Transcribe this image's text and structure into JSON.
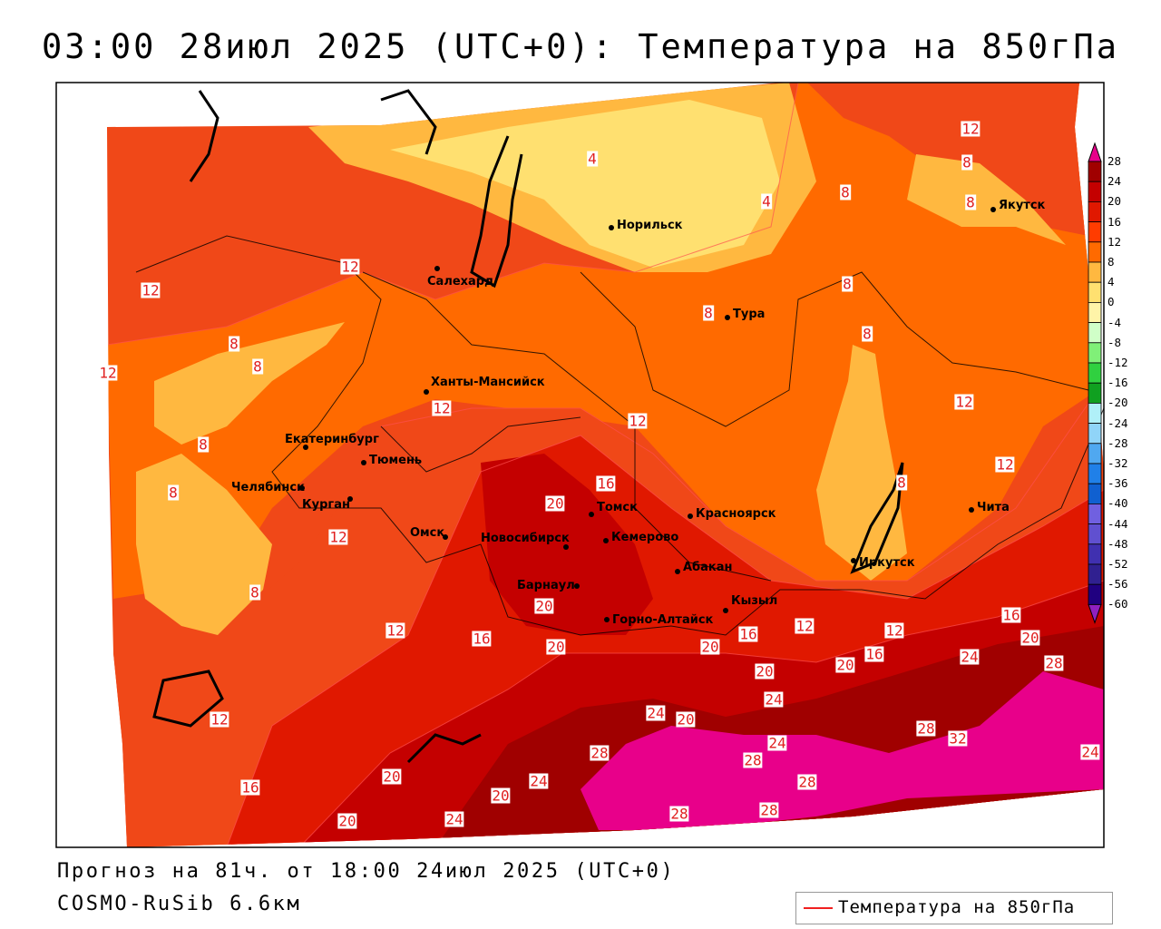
{
  "title": "03:00 28июл 2025 (UTC+0): Температура на 850гПа",
  "footer": {
    "forecast": "Прогноз на 81ч. от 18:00 24июл 2025 (UTC+0)",
    "model": "COSMO-RuSib 6.6км"
  },
  "legend": {
    "label": "Температура на 850гПа",
    "line_color": "#f02020"
  },
  "colorbar": {
    "labels": [
      "28",
      "24",
      "20",
      "16",
      "12",
      "8",
      "4",
      "0",
      "-4",
      "-8",
      "-12",
      "-16",
      "-20",
      "-24",
      "-28",
      "-32",
      "-36",
      "-40",
      "-44",
      "-48",
      "-52",
      "-56",
      "-60"
    ],
    "colors": [
      "#a00000",
      "#c40000",
      "#e01800",
      "#ff3c00",
      "#ff6a00",
      "#ffb840",
      "#ffe070",
      "#fff4a8",
      "#d0ffc8",
      "#80f078",
      "#30d040",
      "#10a020",
      "#b0f0f8",
      "#90d4f8",
      "#50a8f0",
      "#2080e8",
      "#1060d0",
      "#7060e0",
      "#6050d0",
      "#4030b0",
      "#302090",
      "#200080"
    ],
    "over_color": "#e8008a",
    "under_color": "#9020c0"
  },
  "cities": [
    "Норильск",
    "Якутск",
    "Салехард",
    "Тура",
    "Ханты-Мансийск",
    "Екатеринбург",
    "Тюмень",
    "Челябинск",
    "Курган",
    "Омск",
    "Томск",
    "Красноярск",
    "Новосибирск",
    "Кемерово",
    "Абакан",
    "Барнаул",
    "Кызыл",
    "Горно-Алтайск",
    "Иркутск",
    "Чита"
  ],
  "contour_labels": [
    "12",
    "4",
    "8",
    "4",
    "8",
    "8",
    "12",
    "12",
    "8",
    "8",
    "8",
    "8",
    "8",
    "12",
    "12",
    "12",
    "12",
    "8",
    "12",
    "16",
    "8",
    "8",
    "20",
    "12",
    "8",
    "20",
    "16",
    "12",
    "16",
    "16",
    "12",
    "12",
    "20",
    "20",
    "20",
    "16",
    "24",
    "20",
    "28",
    "20",
    "24",
    "12",
    "24",
    "20",
    "28",
    "32",
    "24",
    "28",
    "28",
    "24",
    "20",
    "24",
    "28",
    "16",
    "20",
    "28",
    "28",
    "20",
    "24"
  ]
}
